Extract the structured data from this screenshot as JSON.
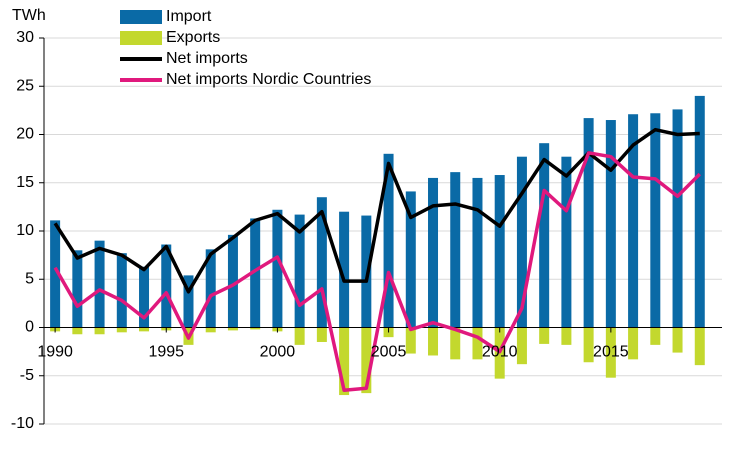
{
  "chart_data": {
    "type": "combo",
    "y_label": "TWh",
    "x": [
      1990,
      1991,
      1992,
      1993,
      1994,
      1995,
      1996,
      1997,
      1998,
      1999,
      2000,
      2001,
      2002,
      2003,
      2004,
      2005,
      2006,
      2007,
      2008,
      2009,
      2010,
      2011,
      2012,
      2013,
      2014,
      2015,
      2016,
      2017,
      2018,
      2019
    ],
    "xlim": [
      1989.5,
      2020
    ],
    "xticks": [
      1990,
      1995,
      2000,
      2005,
      2010,
      2015
    ],
    "ylim": [
      -10,
      30
    ],
    "yticks": [
      -10,
      -5,
      0,
      5,
      10,
      15,
      20,
      25,
      30
    ],
    "grid": true,
    "series": [
      {
        "name": "Import",
        "type": "bar",
        "color": "#0a6aa6",
        "values": [
          11.1,
          8.0,
          9.0,
          7.7,
          6.3,
          8.6,
          5.4,
          8.1,
          9.6,
          11.3,
          12.2,
          11.7,
          13.5,
          12.0,
          11.6,
          18.0,
          14.1,
          15.5,
          16.1,
          15.5,
          15.8,
          17.7,
          19.1,
          17.7,
          21.7,
          21.5,
          22.1,
          22.2,
          22.6,
          24.0
        ]
      },
      {
        "name": "Exports",
        "type": "bar",
        "color": "#c3d82e",
        "values": [
          -0.4,
          -0.7,
          -0.7,
          -0.5,
          -0.4,
          -0.3,
          -1.8,
          -0.5,
          -0.3,
          -0.2,
          -0.4,
          -1.8,
          -1.5,
          -7.0,
          -6.8,
          -1.0,
          -2.7,
          -2.9,
          -3.3,
          -3.3,
          -5.3,
          -3.8,
          -1.7,
          -1.8,
          -3.6,
          -5.2,
          -3.3,
          -1.8,
          -2.6,
          -3.9
        ]
      },
      {
        "name": "Net imports",
        "type": "line",
        "color": "#000000",
        "values": [
          10.8,
          7.2,
          8.2,
          7.5,
          6.0,
          8.4,
          3.7,
          7.6,
          9.3,
          11.1,
          11.8,
          9.9,
          12.0,
          4.8,
          4.8,
          17.0,
          11.4,
          12.6,
          12.8,
          12.2,
          10.5,
          13.9,
          17.4,
          15.7,
          18.1,
          16.3,
          18.9,
          20.5,
          20.0,
          20.1
        ]
      },
      {
        "name": "Net imports Nordic Countries",
        "type": "line",
        "color": "#e0197d",
        "values": [
          6.2,
          2.2,
          3.9,
          2.8,
          1.0,
          3.6,
          -1.1,
          3.3,
          4.4,
          5.9,
          7.3,
          2.3,
          4.0,
          -6.5,
          -6.3,
          5.7,
          -0.2,
          0.5,
          -0.2,
          -1.0,
          -2.5,
          2.0,
          14.2,
          12.1,
          18.1,
          17.7,
          15.6,
          15.4,
          13.6,
          15.9
        ]
      }
    ]
  }
}
